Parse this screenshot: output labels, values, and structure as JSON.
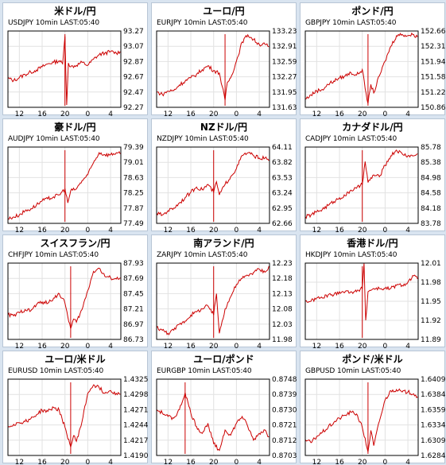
{
  "colors": {
    "line": "#cc0000",
    "frame": "#000000",
    "grid": "#e2e2e2",
    "background": "#d9e4f0"
  },
  "chart_data": [
    {
      "type": "line",
      "title": "米ドル/円",
      "subtitle": "USDJPY 10min LAST:05:40",
      "x_ticks": [
        "12",
        "16",
        "20",
        "0",
        "4"
      ],
      "y_ticks": [
        "93.27",
        "93.07",
        "92.87",
        "92.67",
        "92.47",
        "92.27"
      ],
      "ylim": [
        92.27,
        93.27
      ],
      "spike_at": 20,
      "points": [
        [
          10,
          92.65
        ],
        [
          11,
          92.62
        ],
        [
          12,
          92.66
        ],
        [
          13,
          92.7
        ],
        [
          14,
          92.73
        ],
        [
          15,
          92.76
        ],
        [
          16,
          92.8
        ],
        [
          17,
          92.84
        ],
        [
          18,
          92.86
        ],
        [
          19,
          92.88
        ],
        [
          19.6,
          92.84
        ],
        [
          20,
          93.2
        ],
        [
          20.3,
          92.3
        ],
        [
          20.6,
          92.85
        ],
        [
          21,
          92.8
        ],
        [
          22,
          92.82
        ],
        [
          23,
          92.86
        ],
        [
          0,
          92.82
        ],
        [
          1,
          92.9
        ],
        [
          2,
          92.96
        ],
        [
          3,
          92.98
        ],
        [
          4,
          93.0
        ],
        [
          5,
          92.98
        ],
        [
          5.7,
          93.0
        ]
      ]
    },
    {
      "type": "line",
      "title": "ユーロ/円",
      "subtitle": "EURJPY 10min LAST:05:40",
      "x_ticks": [
        "12",
        "16",
        "20",
        "0",
        "4"
      ],
      "y_ticks": [
        "133.23",
        "132.91",
        "132.59",
        "132.27",
        "131.95",
        "131.63"
      ],
      "ylim": [
        131.63,
        133.23
      ],
      "spike_at": 22,
      "points": [
        [
          10,
          131.95
        ],
        [
          11,
          131.9
        ],
        [
          12,
          131.97
        ],
        [
          13,
          131.98
        ],
        [
          14,
          132.1
        ],
        [
          15,
          132.18
        ],
        [
          16,
          132.25
        ],
        [
          17,
          132.32
        ],
        [
          18,
          132.42
        ],
        [
          19,
          132.5
        ],
        [
          20,
          132.4
        ],
        [
          21,
          132.35
        ],
        [
          22,
          131.78
        ],
        [
          22.4,
          132.15
        ],
        [
          23,
          132.25
        ],
        [
          0,
          132.6
        ],
        [
          1,
          133.0
        ],
        [
          2,
          133.15
        ],
        [
          3,
          133.05
        ],
        [
          4,
          132.95
        ],
        [
          5,
          132.95
        ],
        [
          5.7,
          132.9
        ]
      ]
    },
    {
      "type": "line",
      "title": "ポンド/円",
      "subtitle": "GBPJPY 10min LAST:05:40",
      "x_ticks": [
        "12",
        "16",
        "20",
        "0",
        "4"
      ],
      "y_ticks": [
        "152.66",
        "152.31",
        "151.94",
        "151.58",
        "151.22",
        "150.86"
      ],
      "ylim": [
        150.86,
        152.66
      ],
      "spike_at": 21,
      "points": [
        [
          10,
          151.05
        ],
        [
          11,
          151.15
        ],
        [
          12,
          151.25
        ],
        [
          13,
          151.28
        ],
        [
          14,
          151.4
        ],
        [
          15,
          151.48
        ],
        [
          16,
          151.55
        ],
        [
          17,
          151.6
        ],
        [
          18,
          151.68
        ],
        [
          19,
          151.62
        ],
        [
          20,
          151.75
        ],
        [
          20.5,
          151.3
        ],
        [
          21,
          150.95
        ],
        [
          21.5,
          151.4
        ],
        [
          22,
          151.2
        ],
        [
          23,
          151.6
        ],
        [
          0,
          151.95
        ],
        [
          1,
          152.3
        ],
        [
          2,
          152.55
        ],
        [
          3,
          152.58
        ],
        [
          4,
          152.55
        ],
        [
          5,
          152.58
        ],
        [
          5.7,
          152.52
        ]
      ]
    },
    {
      "type": "line",
      "title": "豪ドル/円",
      "subtitle": "AUDJPY 10min LAST:05:40",
      "x_ticks": [
        "12",
        "16",
        "20",
        "0",
        "4"
      ],
      "y_ticks": [
        "79.39",
        "79.01",
        "78.63",
        "78.25",
        "77.87",
        "77.49"
      ],
      "ylim": [
        77.49,
        79.39
      ],
      "spike_at": 20,
      "points": [
        [
          10,
          77.6
        ],
        [
          11,
          77.65
        ],
        [
          12,
          77.7
        ],
        [
          13,
          77.8
        ],
        [
          14,
          77.85
        ],
        [
          15,
          77.95
        ],
        [
          16,
          78.05
        ],
        [
          17,
          78.1
        ],
        [
          18,
          78.15
        ],
        [
          19,
          78.2
        ],
        [
          20,
          78.35
        ],
        [
          20.5,
          78.0
        ],
        [
          21,
          78.3
        ],
        [
          22,
          78.35
        ],
        [
          23,
          78.55
        ],
        [
          0,
          78.7
        ],
        [
          1,
          79.0
        ],
        [
          2,
          79.25
        ],
        [
          3,
          79.2
        ],
        [
          4,
          79.2
        ],
        [
          5,
          79.25
        ],
        [
          5.7,
          79.22
        ]
      ]
    },
    {
      "type": "line",
      "title": "NZドル/円",
      "subtitle": "NZDJPY 10min LAST:05:40",
      "x_ticks": [
        "12",
        "16",
        "20",
        "0",
        "4"
      ],
      "y_ticks": [
        "64.11",
        "63.82",
        "63.53",
        "63.24",
        "62.95",
        "62.66"
      ],
      "ylim": [
        62.66,
        64.11
      ],
      "spike_at": 20,
      "points": [
        [
          10,
          62.85
        ],
        [
          11,
          62.82
        ],
        [
          12,
          62.9
        ],
        [
          13,
          62.95
        ],
        [
          14,
          63.05
        ],
        [
          15,
          63.15
        ],
        [
          16,
          63.25
        ],
        [
          17,
          63.35
        ],
        [
          18,
          63.3
        ],
        [
          19,
          63.4
        ],
        [
          20,
          63.25
        ],
        [
          20.5,
          63.45
        ],
        [
          21,
          63.2
        ],
        [
          22,
          63.4
        ],
        [
          23,
          63.55
        ],
        [
          0,
          63.7
        ],
        [
          1,
          63.95
        ],
        [
          2,
          64.0
        ],
        [
          3,
          63.95
        ],
        [
          4,
          63.9
        ],
        [
          5,
          63.9
        ],
        [
          5.7,
          63.85
        ]
      ]
    },
    {
      "type": "line",
      "title": "カナダドル/円",
      "subtitle": "CADJPY 10min LAST:05:40",
      "x_ticks": [
        "12",
        "16",
        "20",
        "0",
        "4"
      ],
      "y_ticks": [
        "85.78",
        "85.38",
        "84.98",
        "84.58",
        "84.18",
        "83.78"
      ],
      "ylim": [
        83.78,
        85.78
      ],
      "spike_at": 20,
      "points": [
        [
          10,
          83.95
        ],
        [
          11,
          84.0
        ],
        [
          12,
          84.08
        ],
        [
          13,
          84.15
        ],
        [
          14,
          84.25
        ],
        [
          15,
          84.35
        ],
        [
          16,
          84.45
        ],
        [
          17,
          84.5
        ],
        [
          18,
          84.65
        ],
        [
          19,
          84.7
        ],
        [
          20,
          84.8
        ],
        [
          20.5,
          85.4
        ],
        [
          21,
          84.85
        ],
        [
          22,
          85.05
        ],
        [
          23,
          85.0
        ],
        [
          0,
          85.3
        ],
        [
          1,
          85.55
        ],
        [
          2,
          85.7
        ],
        [
          3,
          85.6
        ],
        [
          4,
          85.55
        ],
        [
          5,
          85.55
        ],
        [
          5.7,
          85.6
        ]
      ]
    },
    {
      "type": "line",
      "title": "スイスフラン/円",
      "subtitle": "CHFJPY 10min LAST:05:40",
      "x_ticks": [
        "12",
        "16",
        "20",
        "0",
        "4"
      ],
      "y_ticks": [
        "87.93",
        "87.69",
        "87.45",
        "87.21",
        "86.97",
        "86.73"
      ],
      "ylim": [
        86.73,
        87.93
      ],
      "spike_at": 21,
      "points": [
        [
          10,
          87.12
        ],
        [
          11,
          87.1
        ],
        [
          12,
          87.15
        ],
        [
          13,
          87.2
        ],
        [
          14,
          87.18
        ],
        [
          15,
          87.28
        ],
        [
          16,
          87.32
        ],
        [
          17,
          87.3
        ],
        [
          18,
          87.38
        ],
        [
          19,
          87.45
        ],
        [
          20,
          87.3
        ],
        [
          21,
          86.9
        ],
        [
          21.5,
          87.05
        ],
        [
          22,
          87.0
        ],
        [
          23,
          87.2
        ],
        [
          0,
          87.5
        ],
        [
          1,
          87.8
        ],
        [
          2,
          87.85
        ],
        [
          3,
          87.72
        ],
        [
          4,
          87.7
        ],
        [
          5,
          87.68
        ],
        [
          5.7,
          87.7
        ]
      ]
    },
    {
      "type": "line",
      "title": "南アランド/円",
      "subtitle": "ZARJPY 10min LAST:05:40",
      "x_ticks": [
        "12",
        "16",
        "20",
        "0",
        "4"
      ],
      "y_ticks": [
        "12.23",
        "12.18",
        "12.13",
        "12.08",
        "12.03",
        "11.98"
      ],
      "ylim": [
        11.98,
        12.23
      ],
      "spike_at": 20,
      "points": [
        [
          10,
          12.02
        ],
        [
          11,
          12.01
        ],
        [
          12,
          12.0
        ],
        [
          13,
          12.01
        ],
        [
          14,
          12.03
        ],
        [
          15,
          12.04
        ],
        [
          16,
          12.06
        ],
        [
          17,
          12.07
        ],
        [
          18,
          12.08
        ],
        [
          19,
          12.09
        ],
        [
          20,
          12.06
        ],
        [
          20.5,
          12.13
        ],
        [
          21,
          12.0
        ],
        [
          22,
          12.08
        ],
        [
          23,
          12.12
        ],
        [
          0,
          12.16
        ],
        [
          1,
          12.18
        ],
        [
          2,
          12.19
        ],
        [
          3,
          12.2
        ],
        [
          4,
          12.21
        ],
        [
          5,
          12.2
        ],
        [
          5.7,
          12.22
        ]
      ]
    },
    {
      "type": "line",
      "title": "香港ドル/円",
      "subtitle": "HKDJPY 10min LAST:05:40",
      "x_ticks": [
        "12",
        "16",
        "20",
        "0",
        "4"
      ],
      "y_ticks": [
        "12.01",
        "11.98",
        "11.95",
        "11.92",
        "11.89"
      ],
      "ylim": [
        11.89,
        12.01
      ],
      "spike_at": 20,
      "points": [
        [
          10,
          11.95
        ],
        [
          11,
          11.95
        ],
        [
          12,
          11.955
        ],
        [
          13,
          11.955
        ],
        [
          14,
          11.96
        ],
        [
          15,
          11.96
        ],
        [
          16,
          11.965
        ],
        [
          17,
          11.965
        ],
        [
          18,
          11.965
        ],
        [
          19,
          11.965
        ],
        [
          20,
          11.97
        ],
        [
          20.3,
          12.01
        ],
        [
          20.6,
          11.92
        ],
        [
          21,
          11.965
        ],
        [
          22,
          11.97
        ],
        [
          23,
          11.97
        ],
        [
          0,
          11.97
        ],
        [
          1,
          11.97
        ],
        [
          2,
          11.975
        ],
        [
          3,
          11.975
        ],
        [
          4,
          11.98
        ],
        [
          5,
          11.99
        ],
        [
          5.7,
          11.985
        ]
      ]
    },
    {
      "type": "line",
      "title": "ユーロ/米ドル",
      "subtitle": "EURUSD 10min LAST:05:40",
      "x_ticks": [
        "12",
        "16",
        "20",
        "0",
        "4"
      ],
      "y_ticks": [
        "1.4325",
        "1.4298",
        "1.4271",
        "1.4244",
        "1.4217",
        "1.4190"
      ],
      "ylim": [
        1.419,
        1.4325
      ],
      "spike_at": 21,
      "points": [
        [
          10,
          1.424
        ],
        [
          11,
          1.4245
        ],
        [
          12,
          1.4248
        ],
        [
          13,
          1.425
        ],
        [
          14,
          1.4255
        ],
        [
          15,
          1.4262
        ],
        [
          16,
          1.427
        ],
        [
          17,
          1.4268
        ],
        [
          18,
          1.4275
        ],
        [
          19,
          1.427
        ],
        [
          20,
          1.424
        ],
        [
          21,
          1.4205
        ],
        [
          21.5,
          1.4225
        ],
        [
          22,
          1.4215
        ],
        [
          23,
          1.425
        ],
        [
          0,
          1.43
        ],
        [
          1,
          1.4315
        ],
        [
          2,
          1.431
        ],
        [
          3,
          1.43
        ],
        [
          4,
          1.4305
        ],
        [
          5,
          1.43
        ],
        [
          5.7,
          1.4298
        ]
      ]
    },
    {
      "type": "line",
      "title": "ユーロ/ポンド",
      "subtitle": "EURGBP 10min LAST:05:40",
      "x_ticks": [
        "12",
        "16",
        "20",
        "0",
        "4"
      ],
      "y_ticks": [
        "0.8748",
        "0.8739",
        "0.8730",
        "0.8721",
        "0.8712",
        "0.8703"
      ],
      "ylim": [
        0.8703,
        0.8748
      ],
      "spike_at": 15,
      "points": [
        [
          10,
          0.873
        ],
        [
          11,
          0.8728
        ],
        [
          12,
          0.8726
        ],
        [
          13,
          0.8725
        ],
        [
          14,
          0.873
        ],
        [
          15,
          0.874
        ],
        [
          16,
          0.8728
        ],
        [
          17,
          0.872
        ],
        [
          18,
          0.8716
        ],
        [
          19,
          0.8722
        ],
        [
          20,
          0.871
        ],
        [
          21,
          0.8706
        ],
        [
          22,
          0.8718
        ],
        [
          23,
          0.8715
        ],
        [
          0,
          0.8722
        ],
        [
          1,
          0.8726
        ],
        [
          2,
          0.872
        ],
        [
          3,
          0.8712
        ],
        [
          4,
          0.8716
        ],
        [
          5,
          0.8718
        ],
        [
          5.7,
          0.8714
        ]
      ]
    },
    {
      "type": "line",
      "title": "ポンド/米ドル",
      "subtitle": "GBPUSD 10min LAST:05:40",
      "x_ticks": [
        "12",
        "16",
        "20",
        "0",
        "4"
      ],
      "y_ticks": [
        "1.6409",
        "1.6384",
        "1.6359",
        "1.6334",
        "1.6309",
        "1.6284"
      ],
      "ylim": [
        1.6284,
        1.6409
      ],
      "spike_at": 21,
      "points": [
        [
          10,
          1.631
        ],
        [
          11,
          1.6305
        ],
        [
          12,
          1.6315
        ],
        [
          13,
          1.6322
        ],
        [
          14,
          1.633
        ],
        [
          15,
          1.6338
        ],
        [
          16,
          1.6345
        ],
        [
          17,
          1.635
        ],
        [
          18,
          1.6355
        ],
        [
          19,
          1.6352
        ],
        [
          20,
          1.633
        ],
        [
          21,
          1.629
        ],
        [
          21.5,
          1.6325
        ],
        [
          22,
          1.63
        ],
        [
          23,
          1.634
        ],
        [
          0,
          1.6375
        ],
        [
          1,
          1.639
        ],
        [
          2,
          1.6392
        ],
        [
          3,
          1.6388
        ],
        [
          4,
          1.6388
        ],
        [
          5,
          1.6385
        ],
        [
          5.7,
          1.638
        ]
      ]
    }
  ]
}
